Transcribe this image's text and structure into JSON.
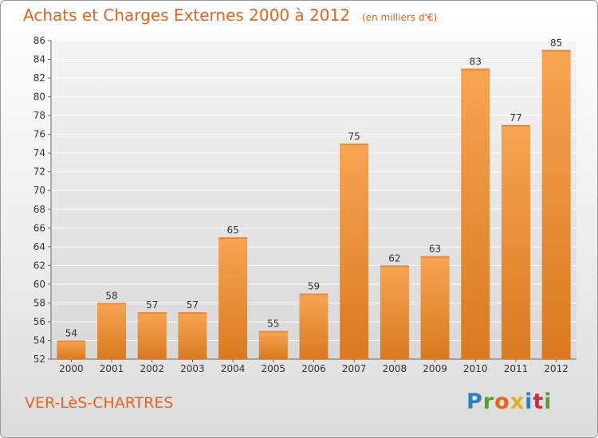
{
  "header": {
    "title": "Achats et Charges Externes 2000 à 2012",
    "unit": "(en milliers d'€)"
  },
  "footer": {
    "commune": "VER-LèS-CHARTRES",
    "logo_letters": [
      "P",
      "r",
      "o",
      "x",
      "i",
      "t",
      "i"
    ],
    "logo_colors": [
      "#2f7fc1",
      "#5a9e2f",
      "#e8641b",
      "#e3b01c",
      "#2f7fc1",
      "#d9263a",
      "#5a9e2f"
    ]
  },
  "colors": {
    "accent": "#e8641b",
    "bar_light": "#f7a452",
    "bar_dark": "#d97a20",
    "grid": "#ffffff"
  },
  "chart_data": {
    "type": "bar",
    "title": "Achats et Charges Externes 2000 à 2012",
    "ylabel": "",
    "xlabel": "",
    "categories": [
      "2000",
      "2001",
      "2002",
      "2003",
      "2004",
      "2005",
      "2006",
      "2007",
      "2008",
      "2009",
      "2010",
      "2011",
      "2012"
    ],
    "values": [
      54,
      58,
      57,
      57,
      65,
      55,
      59,
      75,
      62,
      63,
      83,
      77,
      85
    ],
    "ylim": [
      52,
      86
    ],
    "ytick_step": 2,
    "grid": true,
    "legend": "none",
    "data_labels": true
  }
}
